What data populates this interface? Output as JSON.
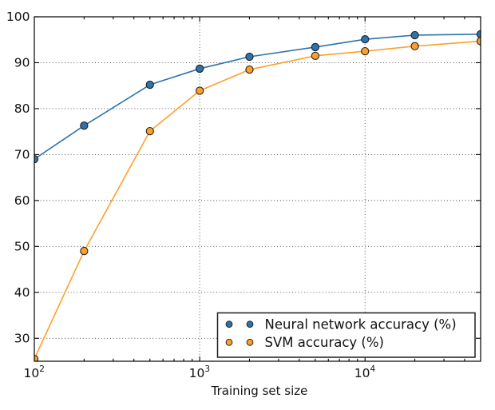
{
  "chart_data": {
    "type": "line",
    "title": "",
    "xlabel": "Training set size",
    "ylabel": "",
    "xscale": "log",
    "xlim": [
      100,
      50000
    ],
    "ylim": [
      25,
      100
    ],
    "yticks": [
      30,
      40,
      50,
      60,
      70,
      80,
      90,
      100
    ],
    "xticks": [
      {
        "value": 100,
        "base": "10",
        "exp": "2"
      },
      {
        "value": 1000,
        "base": "10",
        "exp": "3"
      },
      {
        "value": 10000,
        "base": "10",
        "exp": "4"
      }
    ],
    "grid": "dotted",
    "grid_color": "#444444",
    "x": [
      100,
      200,
      500,
      1000,
      2000,
      5000,
      10000,
      20000,
      50000
    ],
    "series": [
      {
        "name": "Neural network accuracy (%)",
        "color": "#2E73AE",
        "values": [
          69.0,
          76.3,
          85.2,
          88.7,
          91.3,
          93.4,
          95.1,
          96.0,
          96.2
        ]
      },
      {
        "name": "SVM accuracy (%)",
        "color": "#FF9F2B",
        "values": [
          25.5,
          49.0,
          75.1,
          83.9,
          88.5,
          91.5,
          92.5,
          93.6,
          94.7
        ]
      }
    ],
    "marker_edge_color": "#222222",
    "frame_color": "#000000",
    "background": "#ffffff",
    "legend": {
      "position": "lower right",
      "entries": [
        "Neural network accuracy (%)",
        "SVM accuracy (%)"
      ]
    }
  }
}
